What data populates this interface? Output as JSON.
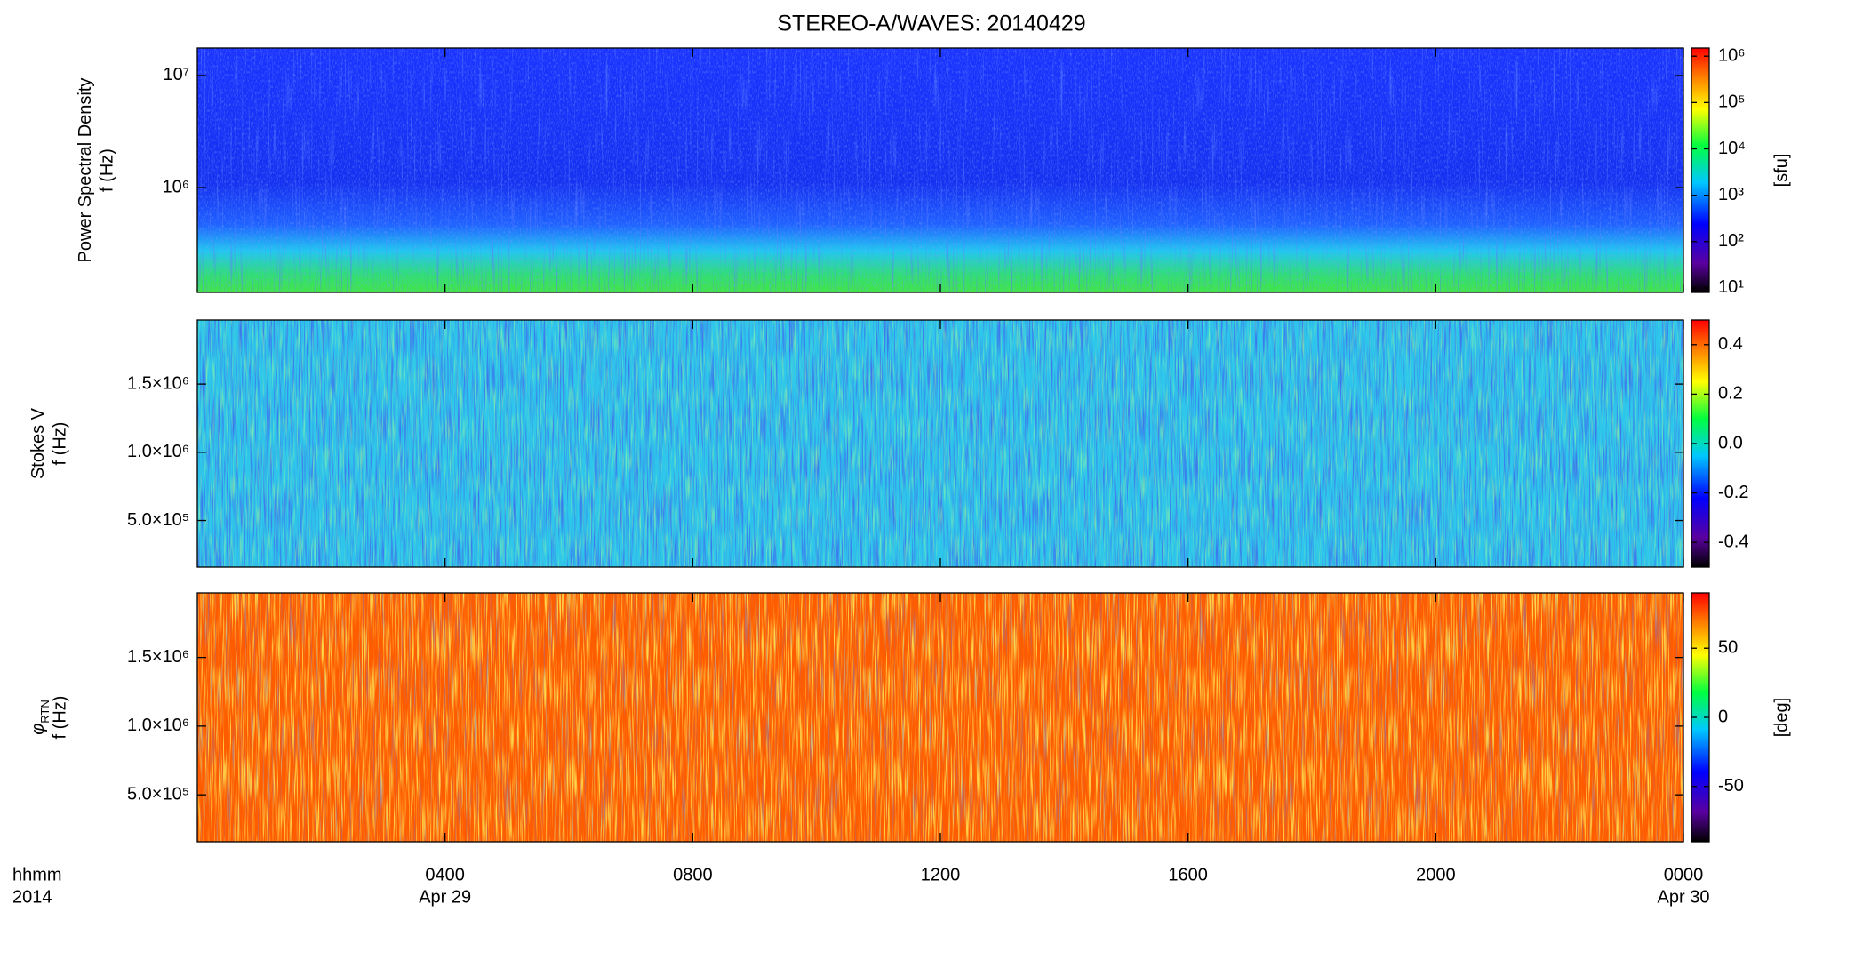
{
  "title": "STEREO-A/WAVES: 20140429",
  "colormap": {
    "positions": [
      0,
      0.12,
      0.28,
      0.45,
      0.6,
      0.75,
      0.88,
      1
    ],
    "colors": [
      "#000000",
      "#5a00a0",
      "#0000ff",
      "#00c8ff",
      "#00ff40",
      "#ffff00",
      "#ff8000",
      "#ff0000"
    ]
  },
  "chart_data": [
    {
      "type": "heatmap",
      "ylabel": "Power Spectral Density",
      "ylabel_unit": "f (Hz)",
      "yscale": "log",
      "ylim": [
        116000,
        17600000
      ],
      "yticks": [
        {
          "value": 1000000,
          "label": "10⁶"
        },
        {
          "value": 10000000,
          "label": "10⁷"
        }
      ],
      "zscale": "log",
      "zlim": [
        8,
        1500000
      ],
      "zticks": [
        {
          "value": 10,
          "label": "10¹"
        },
        {
          "value": 100,
          "label": "10²"
        },
        {
          "value": 1000,
          "label": "10³"
        },
        {
          "value": 10000,
          "label": "10⁴"
        },
        {
          "value": 100000,
          "label": "10⁵"
        },
        {
          "value": 1000000,
          "label": "10⁶"
        }
      ],
      "zlabel": "[sfu]"
    },
    {
      "type": "heatmap",
      "ylabel": "Stokes V",
      "ylabel_unit": "f (Hz)",
      "ylim": [
        158000,
        1970000
      ],
      "yticks": [
        {
          "value": 500000,
          "label": "5.0×10⁵"
        },
        {
          "value": 1000000,
          "label": "1.0×10⁶"
        },
        {
          "value": 1500000,
          "label": "1.5×10⁶"
        }
      ],
      "zlim": [
        -0.5,
        0.5
      ],
      "zticks": [
        -0.4,
        -0.2,
        {
          "value": 0,
          "label": "0.0"
        },
        0.2,
        0.4
      ]
    },
    {
      "type": "heatmap",
      "ylabel": "φ",
      "ylabel_subscript": "RTN",
      "ylabel_unit": "f (Hz)",
      "ylim": [
        158000,
        1970000
      ],
      "yticks": [
        {
          "value": 500000,
          "label": "5.0×10⁵"
        },
        {
          "value": 1000000,
          "label": "1.0×10⁶"
        },
        {
          "value": 1500000,
          "label": "1.5×10⁶"
        }
      ],
      "zlim": [
        -90,
        90
      ],
      "zticks": [
        -50,
        0,
        50
      ],
      "zlabel": "[deg]",
      "xlim": [
        0,
        24
      ],
      "xticks": [
        {
          "value": 4,
          "label": "0400"
        },
        {
          "value": 8,
          "label": "0800"
        },
        {
          "value": 12,
          "label": "1200"
        },
        {
          "value": 16,
          "label": "1600"
        },
        {
          "value": 20,
          "label": "2000"
        },
        {
          "value": 24,
          "label": "0000"
        }
      ],
      "xlabel": "hhmm",
      "year": "2014",
      "date_labels": [
        {
          "value": 4,
          "label": "Apr 29"
        },
        {
          "value": 24,
          "label": "Apr 30"
        }
      ]
    }
  ]
}
